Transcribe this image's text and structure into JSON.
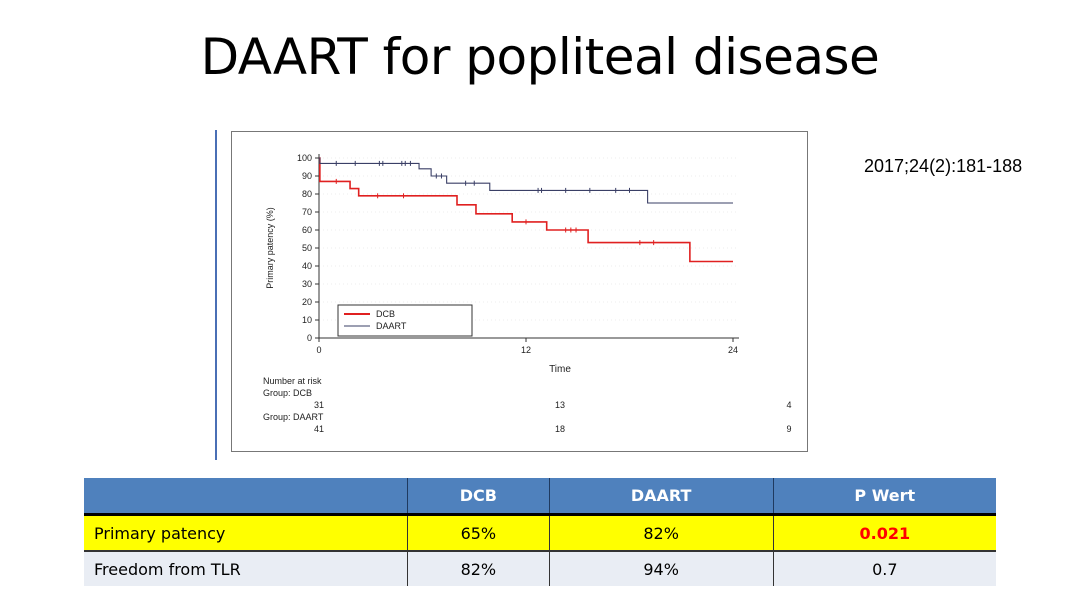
{
  "title": "DAART for popliteal disease",
  "citation": "2017;24(2):181-188",
  "chart_data": {
    "type": "line",
    "subtype": "kaplan-meier",
    "xlabel": "Time",
    "ylabel": "Primary patency (%)",
    "xlim": [
      0,
      24
    ],
    "ylim": [
      0,
      100
    ],
    "xticks": [
      0,
      12,
      24
    ],
    "yticks": [
      0,
      10,
      20,
      30,
      40,
      50,
      60,
      70,
      80,
      90,
      100
    ],
    "legend": {
      "placement": "bottom-left",
      "entries": [
        "DCB",
        "DAART"
      ]
    },
    "series": [
      {
        "name": "DCB",
        "color": "#e02020",
        "steps": [
          [
            0,
            100
          ],
          [
            0.05,
            87
          ],
          [
            1.8,
            83
          ],
          [
            2.3,
            79
          ],
          [
            8.0,
            74
          ],
          [
            9.1,
            69
          ],
          [
            11.2,
            64.5
          ],
          [
            13.2,
            60
          ],
          [
            15.6,
            53
          ],
          [
            21.5,
            42.5
          ],
          [
            24,
            42.5
          ]
        ],
        "censored": [
          [
            1.0,
            87
          ],
          [
            3.4,
            79
          ],
          [
            4.9,
            79
          ],
          [
            12.0,
            64.5
          ],
          [
            14.3,
            60
          ],
          [
            14.6,
            60
          ],
          [
            14.9,
            60
          ],
          [
            18.6,
            53
          ],
          [
            19.4,
            53
          ]
        ]
      },
      {
        "name": "DAART",
        "color": "#3a3f66",
        "steps": [
          [
            0,
            100
          ],
          [
            0.05,
            97
          ],
          [
            5.8,
            94
          ],
          [
            6.5,
            90
          ],
          [
            7.4,
            86
          ],
          [
            9.9,
            82
          ],
          [
            19.05,
            75
          ],
          [
            24,
            75
          ]
        ],
        "censored": [
          [
            1.0,
            97
          ],
          [
            2.1,
            97
          ],
          [
            3.5,
            97
          ],
          [
            3.7,
            97
          ],
          [
            4.8,
            97
          ],
          [
            5.0,
            97
          ],
          [
            5.3,
            97
          ],
          [
            6.8,
            90
          ],
          [
            7.1,
            90
          ],
          [
            8.5,
            86
          ],
          [
            9.0,
            86
          ],
          [
            12.7,
            82
          ],
          [
            12.9,
            82
          ],
          [
            14.3,
            82
          ],
          [
            15.7,
            82
          ],
          [
            17.2,
            82
          ],
          [
            18.0,
            82
          ]
        ]
      }
    ],
    "risk_table": {
      "heading": "Number at risk",
      "groups": [
        {
          "label": "Group: DCB",
          "values": [
            "31",
            "13",
            "4"
          ]
        },
        {
          "label": "Group: DAART",
          "values": [
            "41",
            "18",
            "9"
          ]
        }
      ]
    }
  },
  "table": {
    "headers": [
      "",
      "DCB",
      "DAART",
      "P Wert"
    ],
    "rows": [
      {
        "label": "Primary patency",
        "dcb": "65%",
        "daart": "82%",
        "p": "0.021"
      },
      {
        "label": "Freedom from TLR",
        "dcb": "82%",
        "daart": "94%",
        "p": "0.7"
      }
    ]
  },
  "colors": {
    "header": "#4f81bd",
    "highlight": "#ffff00",
    "significant": "#ff0000"
  }
}
